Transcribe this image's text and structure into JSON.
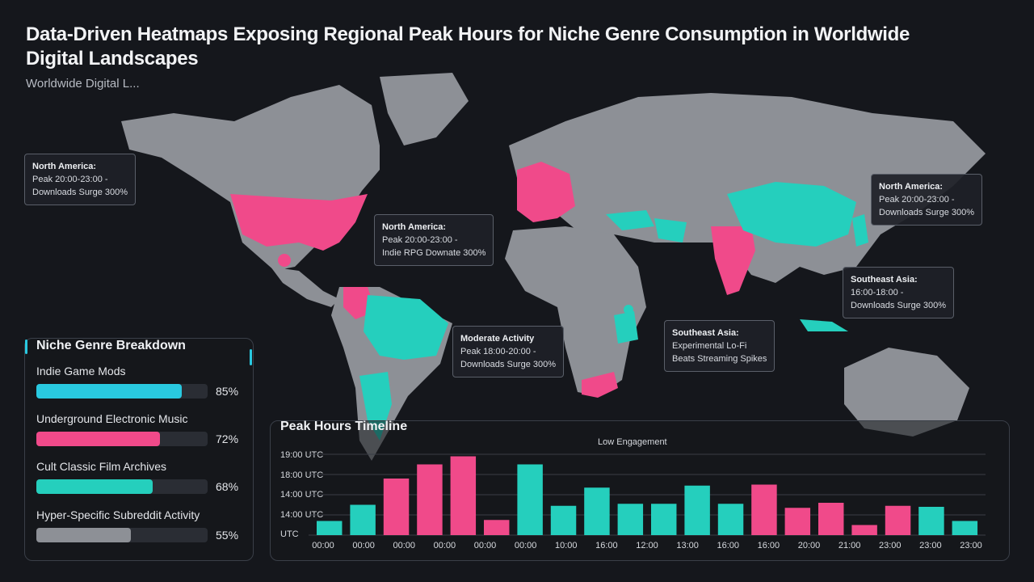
{
  "header": {
    "title": "Data-Driven Heatmaps Exposing Regional Peak Hours for Niche Genre Consumption in Worldwide Digital Landscapes",
    "subtitle": "Worldwide Digital L..."
  },
  "callouts": [
    {
      "title": "North America:",
      "line1": "Peak 20:00-23:00 -",
      "line2": "Downloads Surge 300%"
    },
    {
      "title": "North America:",
      "line1": "Peak 20:00-23:00 -",
      "line2": "Indie RPG Downate 300%"
    },
    {
      "title": "North America:",
      "line1": "Peak 20:00-23:00 -",
      "line2": "Downloads Surge 300%"
    },
    {
      "title": "Southeast Asia:",
      "line1": "16:00-18:00 -",
      "line2": "Downloads Surge 300%"
    },
    {
      "title": "Moderate Activity",
      "line1": "Peak 18:00-20:00 -",
      "line2": "Downloads Surge 300%"
    },
    {
      "title": "Southeast Asia:",
      "line1": "Experimental Lo-Fi",
      "line2": "Beats Streaming Spikes"
    }
  ],
  "genre_panel": {
    "title": "Niche Genre Breakdown",
    "items": [
      {
        "label": "Indie Game Mods",
        "value": 85,
        "pct": "85%",
        "color": "#29c9e0"
      },
      {
        "label": "Underground Electronic Music",
        "value": 72,
        "pct": "72%",
        "color": "#f04a8a"
      },
      {
        "label": "Cult Classic Film Archives",
        "value": 68,
        "pct": "68%",
        "color": "#25cfbd"
      },
      {
        "label": "Hyper-Specific Subreddit Activity",
        "value": 55,
        "pct": "55%",
        "color": "#8d9096"
      }
    ]
  },
  "colors": {
    "pink": "#f04a8a",
    "teal": "#25cfbd",
    "land": "#8d9096",
    "background": "#15171c"
  },
  "chart_data": {
    "type": "bar",
    "title": "Peak Hours Timeline",
    "annotation": "Low Engagement",
    "y_tick_labels": [
      "19:00 UTC",
      "18:00 UTC",
      "14:00 UTC",
      "14:00 UTC",
      "UTC"
    ],
    "x_tick_labels": [
      "00:00",
      "00:00",
      "00:00",
      "00:00",
      "00:00",
      "00:00",
      "10:00",
      "16:00",
      "12:00",
      "13:00",
      "16:00",
      "16:00",
      "20:00",
      "21:00",
      "23:00",
      "23:00",
      "23:00"
    ],
    "ylim": [
      0,
      4
    ],
    "grid": true,
    "values": [
      0.7,
      1.5,
      2.8,
      3.5,
      3.9,
      0.75,
      3.5,
      1.45,
      2.35,
      1.55,
      1.55,
      2.45,
      1.55,
      2.5,
      1.35,
      1.6,
      0.5,
      1.45,
      1.4,
      0.7
    ],
    "colors": [
      "#25cfbd",
      "#25cfbd",
      "#f04a8a",
      "#f04a8a",
      "#f04a8a",
      "#f04a8a",
      "#25cfbd",
      "#25cfbd",
      "#25cfbd",
      "#25cfbd",
      "#25cfbd",
      "#25cfbd",
      "#25cfbd",
      "#f04a8a",
      "#f04a8a",
      "#f04a8a",
      "#f04a8a",
      "#f04a8a",
      "#25cfbd",
      "#25cfbd"
    ]
  }
}
